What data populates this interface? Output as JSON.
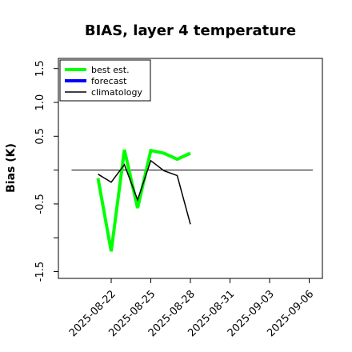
{
  "chart_data": {
    "type": "line",
    "title": "BIAS, layer 4 temperature",
    "ylabel": "Bias (K)",
    "xlabel": "",
    "ylim": [
      -1.6,
      1.65
    ],
    "xlim": [
      "2025-08-18",
      "2025-09-07"
    ],
    "y_ticks": [
      -1.5,
      -1.0,
      -0.5,
      0.0,
      0.5,
      1.0,
      1.5
    ],
    "y_tick_labels": [
      "-1.5",
      "",
      "-0.5",
      "",
      "0.5",
      "1.0",
      "1.5"
    ],
    "x_ticks": [
      "2025-08-22",
      "2025-08-25",
      "2025-08-28",
      "2025-08-31",
      "2025-09-03",
      "2025-09-06"
    ],
    "x_tick_labels": [
      "2025-08-22",
      "2025-08-25",
      "2025-08-28",
      "2025-08-31",
      "2025-09-03",
      "2025-09-06"
    ],
    "highlight_tick": "2025-08-28",
    "highlight_color": "#228B22",
    "reference_line": 0.0,
    "grid": false,
    "legend_placement": "top-left",
    "series": [
      {
        "name": "best est.",
        "color": "#00ff00",
        "x": [
          "2025-08-21",
          "2025-08-22",
          "2025-08-23",
          "2025-08-24",
          "2025-08-25",
          "2025-08-26",
          "2025-08-27",
          "2025-08-28"
        ],
        "y": [
          -0.12,
          -1.2,
          0.3,
          -0.56,
          0.29,
          0.25,
          0.16,
          0.25
        ]
      },
      {
        "name": "forecast",
        "color": "#0000ff",
        "x": [],
        "y": []
      },
      {
        "name": "climatology",
        "color": "#000000",
        "x": [
          "2025-08-21",
          "2025-08-22",
          "2025-08-23",
          "2025-08-24",
          "2025-08-25",
          "2025-08-26",
          "2025-08-27",
          "2025-08-28"
        ],
        "y": [
          -0.06,
          -0.18,
          0.08,
          -0.44,
          0.14,
          -0.01,
          -0.08,
          -0.8
        ]
      }
    ]
  }
}
